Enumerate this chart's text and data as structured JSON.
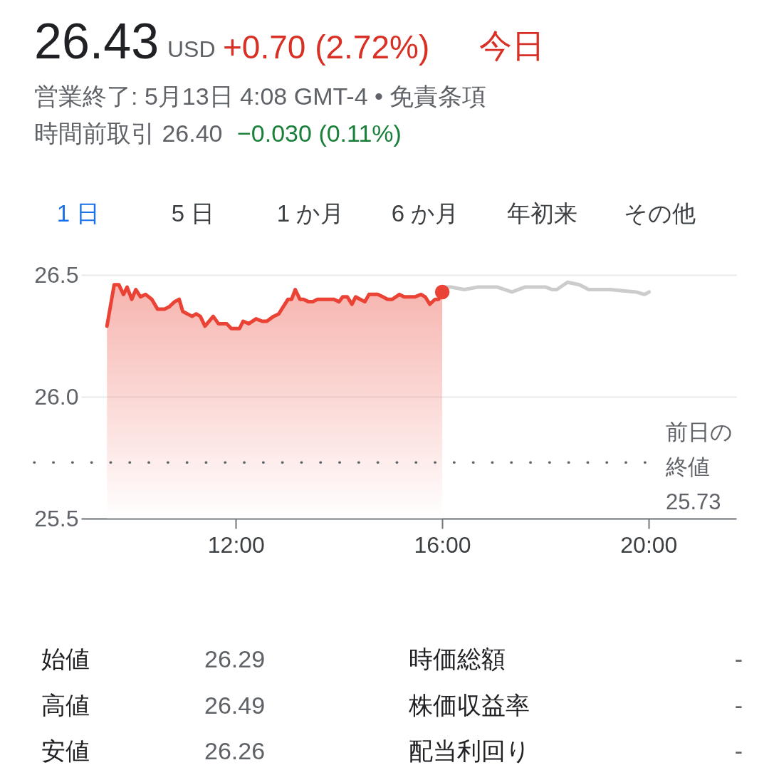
{
  "chart_data": {
    "type": "area",
    "title": "26.43",
    "subtitle": "営業終了: 5月13日 4:08 GMT-4 • 免責条項",
    "annotations": [
      "USD",
      "+0.70 (2.72%)",
      "今日",
      "時間前取引 26.40",
      "−0.030 (0.11%)",
      "1 日",
      "5 日",
      "1 か月",
      "6 か月",
      "年初来",
      "その他",
      "始値",
      "26.29",
      "時価総額",
      "-",
      "高値",
      "26.49",
      "株価収益率",
      "-",
      "安値",
      "26.26",
      "配当利回り",
      "-"
    ],
    "xlim": [
      9.0,
      21.7
    ],
    "xticks": [
      {
        "value": 12,
        "label": "12:00"
      },
      {
        "value": 16,
        "label": "16:00"
      },
      {
        "value": 20,
        "label": "20:00"
      }
    ],
    "ylim": [
      25.5,
      26.5
    ],
    "yticks": [
      25.5,
      {
        "value": 26.0,
        "label": "26.0"
      },
      26.5
    ],
    "grid": "y",
    "series": [
      {
        "color": "#ea4335",
        "x": [
          9.5,
          9.64,
          9.73,
          9.82,
          9.89,
          9.98,
          10.06,
          10.15,
          10.25,
          10.37,
          10.48,
          10.62,
          10.71,
          10.81,
          10.9,
          10.97,
          11.15,
          11.23,
          11.31,
          11.4,
          11.56,
          11.66,
          11.82,
          11.91,
          12.07,
          12.14,
          12.25,
          12.39,
          12.51,
          12.6,
          12.73,
          12.83,
          12.92,
          13.01,
          13.08,
          13.15,
          13.24,
          13.31,
          13.41,
          13.49,
          13.58,
          13.68,
          13.77,
          13.9,
          14.0,
          14.07,
          14.16,
          14.25,
          14.32,
          14.41,
          14.5,
          14.58,
          14.69,
          14.75,
          14.85,
          14.94,
          15.03,
          15.17,
          15.26,
          15.35,
          15.47,
          15.59,
          15.67,
          15.76,
          15.86,
          15.93,
          16.0
        ],
        "values": [
          26.29,
          26.46,
          26.46,
          26.42,
          26.45,
          26.4,
          26.44,
          26.41,
          26.42,
          26.4,
          26.36,
          26.36,
          26.37,
          26.39,
          26.4,
          26.35,
          26.33,
          26.34,
          26.33,
          26.29,
          26.33,
          26.3,
          26.3,
          26.28,
          26.28,
          26.31,
          26.3,
          26.32,
          26.31,
          26.31,
          26.33,
          26.34,
          26.37,
          26.4,
          26.4,
          26.44,
          26.4,
          26.4,
          26.39,
          26.39,
          26.4,
          26.4,
          26.4,
          26.4,
          26.39,
          26.41,
          26.41,
          26.38,
          26.41,
          26.4,
          26.39,
          26.42,
          26.42,
          26.42,
          26.41,
          26.4,
          26.4,
          26.42,
          26.41,
          26.41,
          26.41,
          26.42,
          26.41,
          26.38,
          26.4,
          26.4,
          26.43
        ]
      },
      {
        "type": "line",
        "color": "#cccccc",
        "x": [
          16.0,
          16.18,
          16.43,
          16.68,
          17.07,
          17.35,
          17.6,
          18.01,
          18.13,
          18.22,
          18.43,
          18.66,
          18.84,
          19.25,
          19.76,
          19.92,
          20.01
        ],
        "values": [
          26.45,
          26.45,
          26.44,
          26.45,
          26.45,
          26.43,
          26.45,
          26.45,
          26.44,
          26.44,
          26.47,
          26.46,
          26.44,
          26.44,
          26.43,
          26.42,
          26.43
        ]
      },
      {
        "type": "scatter",
        "color": "#ea4335",
        "marker": "circle",
        "x": [
          16.0
        ],
        "values": [
          26.43
        ]
      }
    ],
    "ref_lines": [
      {
        "axis": "y",
        "value": 25.73,
        "label": "前日の終値25.73",
        "line_style": "dotted",
        "color": "#5f6368"
      }
    ]
  }
}
